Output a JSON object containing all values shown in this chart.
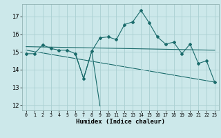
{
  "xlabel": "Humidex (Indice chaleur)",
  "xlim": [
    -0.5,
    23.5
  ],
  "ylim": [
    11.7,
    17.7
  ],
  "yticks": [
    12,
    13,
    14,
    15,
    16,
    17
  ],
  "xticks": [
    0,
    1,
    2,
    3,
    4,
    5,
    6,
    7,
    8,
    9,
    10,
    11,
    12,
    13,
    14,
    15,
    16,
    17,
    18,
    19,
    20,
    21,
    22,
    23
  ],
  "bg_color": "#cce8ea",
  "grid_color": "#aacfd2",
  "line_color": "#1a6b6b",
  "line_main": {
    "x": [
      0,
      1,
      2,
      3,
      4,
      5,
      6,
      7,
      8,
      9,
      10,
      11,
      12,
      13,
      14,
      15,
      16,
      17,
      18,
      19,
      20,
      21,
      22,
      23
    ],
    "y": [
      14.9,
      14.9,
      15.4,
      15.2,
      15.1,
      15.1,
      14.9,
      13.5,
      15.05,
      15.8,
      15.85,
      15.7,
      16.55,
      16.7,
      17.35,
      16.65,
      15.85,
      15.45,
      15.55,
      14.9,
      15.45,
      14.35,
      14.5,
      13.3
    ]
  },
  "line_flat": {
    "x": [
      0,
      23
    ],
    "y": [
      15.3,
      15.1
    ]
  },
  "line_decline": {
    "x": [
      0,
      23
    ],
    "y": [
      15.1,
      13.3
    ]
  },
  "line_spike": {
    "x": [
      6,
      7,
      8,
      9
    ],
    "y": [
      14.9,
      13.5,
      15.05,
      11.95
    ]
  }
}
